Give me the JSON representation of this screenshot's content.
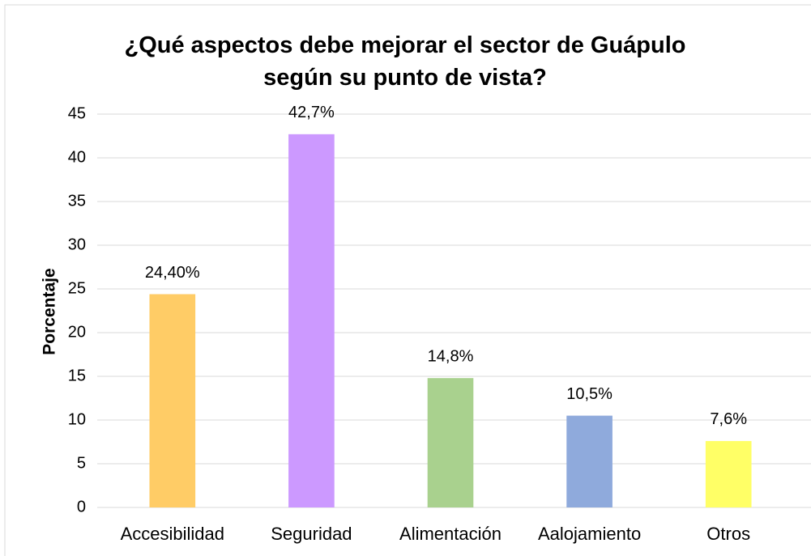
{
  "chart_data": {
    "type": "bar",
    "title": "¿Qué aspectos debe mejorar el sector de Guápulo según su punto de vista?",
    "ylabel": "Porcentaje",
    "categories": [
      "Accesibilidad",
      "Seguridad",
      "Alimentación",
      "Aalojamiento",
      "Otros"
    ],
    "values": [
      24.4,
      42.7,
      14.8,
      10.5,
      7.6
    ],
    "value_labels": [
      "24,40%",
      "42,7%",
      "14,8%",
      "10,5%",
      "7,6%"
    ],
    "colors": [
      "#FFCC66",
      "#CC99FF",
      "#A9D18E",
      "#8FAADC",
      "#FFFF66"
    ],
    "ylim": [
      0,
      45
    ],
    "yticks": [
      0,
      5,
      10,
      15,
      20,
      25,
      30,
      35,
      40,
      45
    ],
    "grid": true
  }
}
